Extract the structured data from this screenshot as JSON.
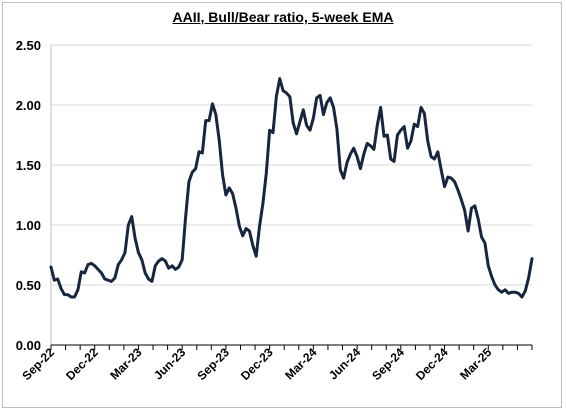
{
  "chart_data": {
    "type": "line",
    "title": "AAII, Bull/Bear ratio, 5-week EMA",
    "xlabel": "",
    "ylabel": "",
    "ylim": [
      0,
      2.5
    ],
    "yticks": [
      "0.00",
      "0.50",
      "1.00",
      "1.50",
      "2.00",
      "2.50"
    ],
    "xticks": [
      "Sep-22",
      "Dec-22",
      "Mar-23",
      "Jun-23",
      "Sep-23",
      "Dec-23",
      "Mar-24",
      "Jun-24",
      "Sep-24",
      "Dec-24",
      "Mar-25"
    ],
    "grid": true,
    "legend": "none",
    "line_color": "#17263f",
    "series": [
      {
        "values": [
          0.65,
          0.54,
          0.55,
          0.47,
          0.42,
          0.42,
          0.4,
          0.4,
          0.46,
          0.61,
          0.6,
          0.67,
          0.68,
          0.66,
          0.63,
          0.6,
          0.55,
          0.54,
          0.53,
          0.56,
          0.67,
          0.71,
          0.77,
          1.0,
          1.07,
          0.89,
          0.77,
          0.71,
          0.6,
          0.55,
          0.53,
          0.66,
          0.7,
          0.72,
          0.7,
          0.64,
          0.66,
          0.63,
          0.65,
          0.71,
          1.06,
          1.36,
          1.44,
          1.47,
          1.61,
          1.6,
          1.87,
          1.87,
          2.01,
          1.92,
          1.71,
          1.42,
          1.25,
          1.31,
          1.26,
          1.14,
          0.99,
          0.91,
          0.97,
          0.95,
          0.83,
          0.74,
          0.99,
          1.18,
          1.43,
          1.79,
          1.77,
          2.07,
          2.22,
          2.12,
          2.1,
          2.07,
          1.85,
          1.76,
          1.86,
          1.96,
          1.83,
          1.79,
          1.89,
          2.06,
          2.08,
          1.92,
          2.02,
          2.06,
          1.98,
          1.8,
          1.46,
          1.39,
          1.52,
          1.59,
          1.64,
          1.57,
          1.47,
          1.59,
          1.68,
          1.66,
          1.63,
          1.83,
          1.98,
          1.74,
          1.75,
          1.55,
          1.53,
          1.75,
          1.79,
          1.82,
          1.64,
          1.7,
          1.84,
          1.82,
          1.98,
          1.93,
          1.7,
          1.57,
          1.55,
          1.61,
          1.46,
          1.32,
          1.4,
          1.39,
          1.36,
          1.29,
          1.21,
          1.12,
          0.95,
          1.14,
          1.16,
          1.05,
          0.9,
          0.85,
          0.66,
          0.57,
          0.5,
          0.46,
          0.44,
          0.46,
          0.43,
          0.44,
          0.44,
          0.43,
          0.4,
          0.45,
          0.56,
          0.72
        ]
      }
    ]
  }
}
